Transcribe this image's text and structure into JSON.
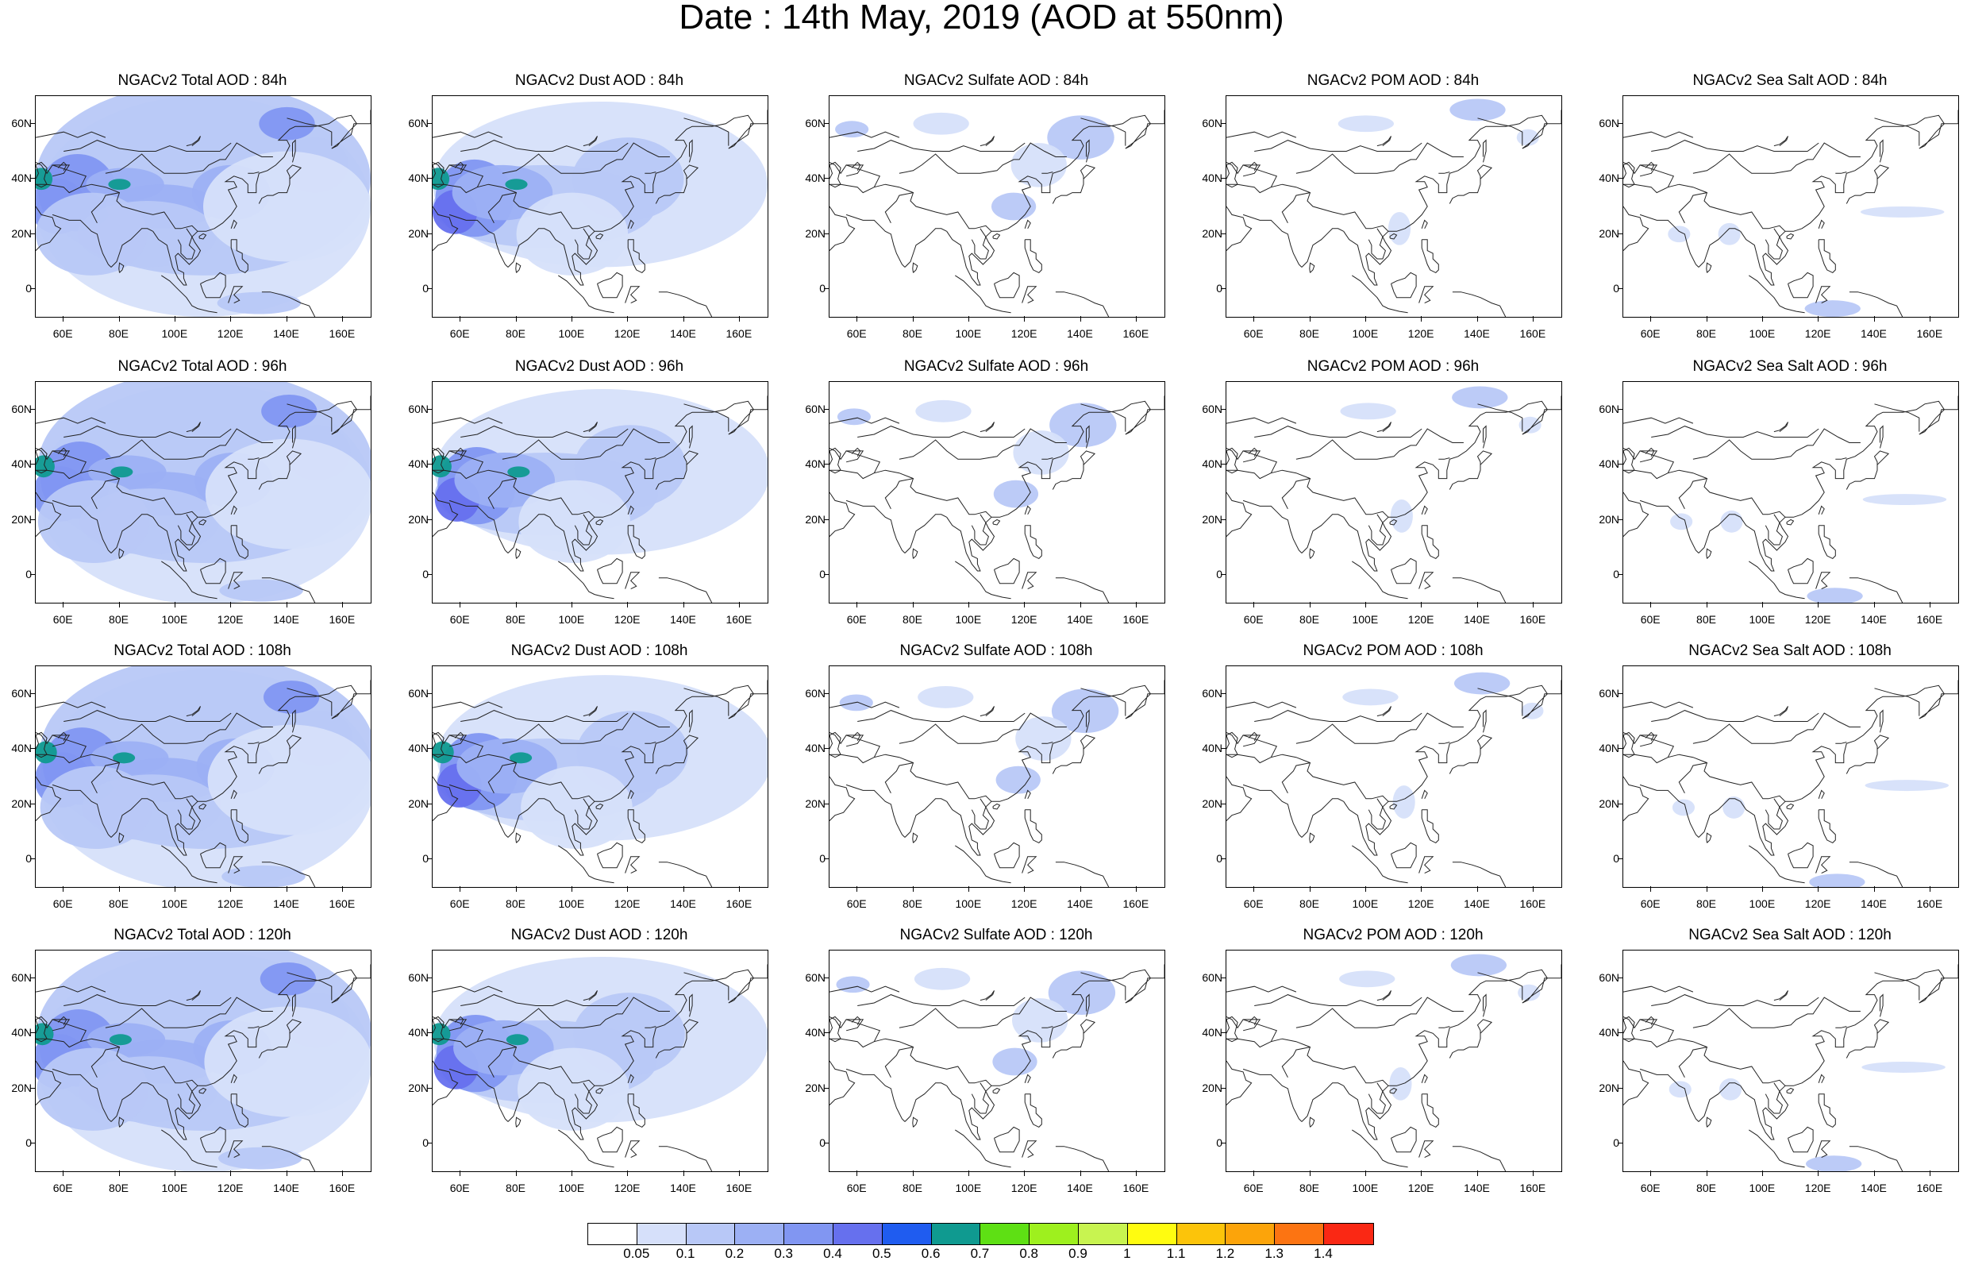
{
  "title": "Date : 14th May, 2019 (AOD at 550nm)",
  "lat_labels": [
    "60N",
    "40N",
    "20N",
    "0"
  ],
  "lon_labels": [
    "60E",
    "80E",
    "100E",
    "120E",
    "140E",
    "160E"
  ],
  "rows": [
    {
      "lead": "84h",
      "titles": [
        "NGACv2 Total AOD : 84h",
        "NGACv2 Dust AOD : 84h",
        "NGACv2 Sulfate AOD : 84h",
        "NGACv2 POM AOD : 84h",
        "NGACv2 Sea Salt AOD : 84h"
      ]
    },
    {
      "lead": "96h",
      "titles": [
        "NGACv2 Total AOD : 96h",
        "NGACv2 Dust AOD : 96h",
        "NGACv2 Sulfate AOD : 96h",
        "NGACv2 POM AOD : 96h",
        "NGACv2 Sea Salt AOD : 96h"
      ]
    },
    {
      "lead": "108h",
      "titles": [
        "NGACv2 Total AOD : 108h",
        "NGACv2 Dust AOD : 108h",
        "NGACv2 Sulfate AOD : 108h",
        "NGACv2 POM AOD : 108h",
        "NGACv2 Sea Salt AOD : 108h"
      ]
    },
    {
      "lead": "120h",
      "titles": [
        "NGACv2 Total AOD : 120h",
        "NGACv2 Dust AOD : 120h",
        "NGACv2 Sulfate AOD : 120h",
        "NGACv2 POM AOD : 120h",
        "NGACv2 Sea Salt  AOD : 120h"
      ]
    }
  ],
  "colorbar": {
    "colors": [
      "#ffffff",
      "#d6e0fa",
      "#b8c8f7",
      "#9cb0f4",
      "#8196f2",
      "#6670ee",
      "#1f5cf0",
      "#0f9a90",
      "#5ee014",
      "#9ef01e",
      "#c8f450",
      "#fffc10",
      "#fcc40a",
      "#fca40a",
      "#fc7412",
      "#fa2814"
    ],
    "labels": [
      "0.05",
      "0.1",
      "0.2",
      "0.3",
      "0.4",
      "0.5",
      "0.6",
      "0.7",
      "0.8",
      "0.9",
      "1",
      "1.1",
      "1.2",
      "1.3",
      "1.4"
    ]
  }
}
